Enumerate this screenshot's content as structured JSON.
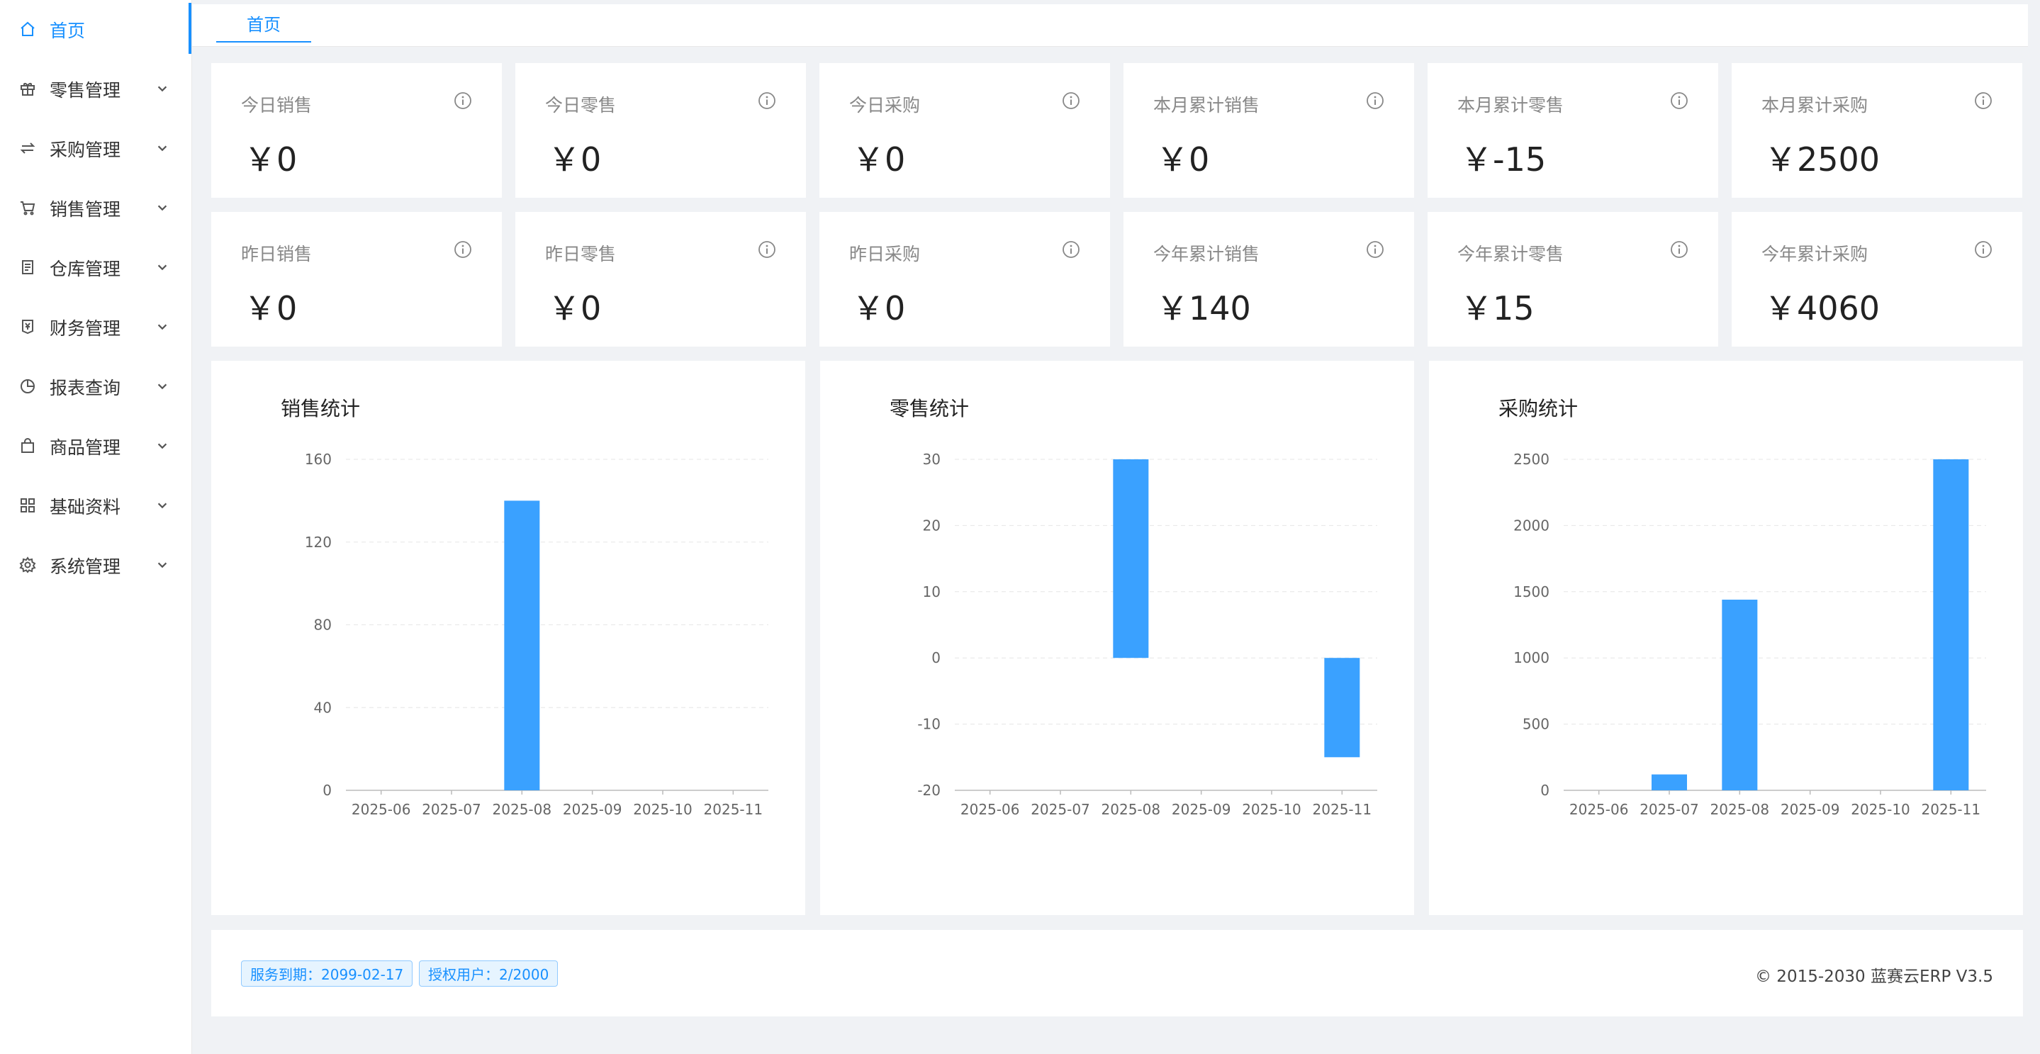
{
  "sidebar": {
    "items": [
      {
        "label": "首页",
        "icon": "home-icon",
        "active": true
      },
      {
        "label": "零售管理",
        "icon": "gift-icon"
      },
      {
        "label": "采购管理",
        "icon": "swap-icon"
      },
      {
        "label": "销售管理",
        "icon": "cart-icon"
      },
      {
        "label": "仓库管理",
        "icon": "book-icon"
      },
      {
        "label": "财务管理",
        "icon": "money-collect-icon"
      },
      {
        "label": "报表查询",
        "icon": "pie-chart-icon"
      },
      {
        "label": "商品管理",
        "icon": "shopping-bag-icon"
      },
      {
        "label": "基础资料",
        "icon": "appstore-icon"
      },
      {
        "label": "系统管理",
        "icon": "setting-icon"
      }
    ]
  },
  "tabs": [
    {
      "label": "首页"
    }
  ],
  "stats_row1": [
    {
      "label": "今日销售",
      "value": "￥0"
    },
    {
      "label": "今日零售",
      "value": "￥0"
    },
    {
      "label": "今日采购",
      "value": "￥0"
    },
    {
      "label": "本月累计销售",
      "value": "￥0"
    },
    {
      "label": "本月累计零售",
      "value": "￥-15"
    },
    {
      "label": "本月累计采购",
      "value": "￥2500"
    }
  ],
  "stats_row2": [
    {
      "label": "昨日销售",
      "value": "￥0"
    },
    {
      "label": "昨日零售",
      "value": "￥0"
    },
    {
      "label": "昨日采购",
      "value": "￥0"
    },
    {
      "label": "今年累计销售",
      "value": "￥140"
    },
    {
      "label": "今年累计零售",
      "value": "￥15"
    },
    {
      "label": "今年累计采购",
      "value": "￥4060"
    }
  ],
  "chart_data": [
    {
      "type": "bar",
      "title": "销售统计",
      "categories": [
        "2025-06",
        "2025-07",
        "2025-08",
        "2025-09",
        "2025-10",
        "2025-11"
      ],
      "values": [
        0,
        0,
        140,
        0,
        0,
        0
      ],
      "ylim": [
        0,
        160
      ],
      "yticks": [
        0,
        40,
        80,
        120,
        160
      ],
      "color": "#3aa1ff",
      "grid": true
    },
    {
      "type": "bar",
      "title": "零售统计",
      "categories": [
        "2025-06",
        "2025-07",
        "2025-08",
        "2025-09",
        "2025-10",
        "2025-11"
      ],
      "values": [
        0,
        0,
        30,
        0,
        0,
        -15
      ],
      "ylim": [
        -20,
        30
      ],
      "yticks": [
        -20,
        -10,
        0,
        10,
        20,
        30
      ],
      "color": "#3aa1ff",
      "grid": true
    },
    {
      "type": "bar",
      "title": "采购统计",
      "categories": [
        "2025-06",
        "2025-07",
        "2025-08",
        "2025-09",
        "2025-10",
        "2025-11"
      ],
      "values": [
        0,
        120,
        1440,
        0,
        0,
        2500
      ],
      "ylim": [
        0,
        2500
      ],
      "yticks": [
        0,
        500,
        1000,
        1500,
        2000,
        2500
      ],
      "color": "#3aa1ff",
      "grid": true
    }
  ],
  "footer": {
    "service_expiry": "服务到期：2099-02-17",
    "licensed_users": "授权用户：2/2000",
    "copyright": "© 2015-2030 蓝赛云ERP V3.5"
  },
  "colors": {
    "accent": "#1890ff",
    "bar": "#3aa1ff"
  }
}
